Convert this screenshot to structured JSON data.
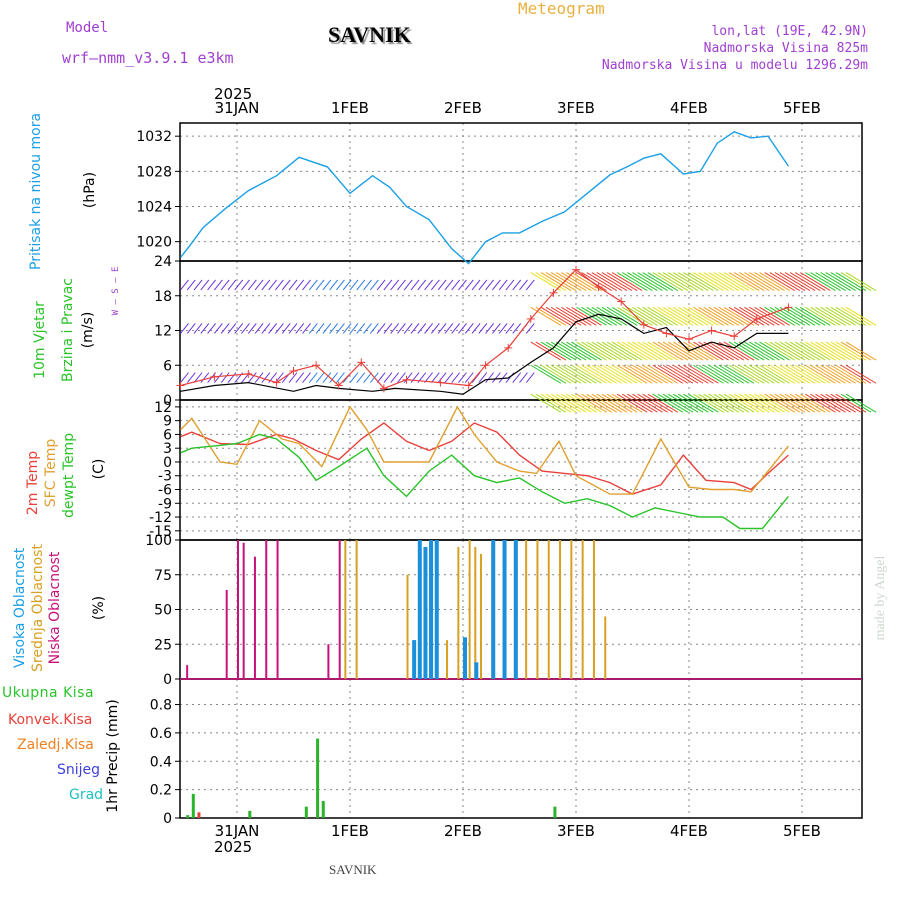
{
  "header": {
    "model_label": "Model",
    "model_name": "wrf—nmm_v3.9.1 e3km",
    "title": "SAVNIK",
    "meteogram_label": "Meteogram",
    "lonlat": "lon,lat (19E, 42.9N)",
    "altitude": "Nadmorska Visina 825m",
    "model_altitude": "Nadmorska Visina u modelu 1296.29m",
    "footer_station": "SAVNIK",
    "watermark": "made by Angel"
  },
  "colors": {
    "pressure": "#1aa0e6",
    "temp2m": "#e8403a",
    "sfc": "#e0a030",
    "dewpt": "#2ac42a",
    "high_cloud": "#1a90dc",
    "mid_cloud": "#d8a020",
    "low_cloud": "#c8107a",
    "total_precip": "#2ab42a",
    "conv_precip": "#e0403a",
    "frz_precip": "#f08020",
    "snow": "#4040e0",
    "graupel": "#20c0c0",
    "title_purple": "#a040d0",
    "meteogram_orange": "#e8b040"
  },
  "axes_labels": {
    "top_year": "2025",
    "top_dates": [
      "31JAN",
      "1FEB",
      "2FEB",
      "3FEB",
      "4FEB",
      "5FEB"
    ],
    "bottom_dates": [
      "31JAN",
      "1FEB",
      "2FEB",
      "3FEB",
      "4FEB",
      "5FEB"
    ],
    "bottom_year": "2025"
  },
  "panel_labels": {
    "pressure_name": "Pritisak na nivou mora",
    "pressure_unit": "(hPa)",
    "wind_name1": "10m Vjetar",
    "wind_name2": "Brzina i Pravac",
    "wind_unit": "(m/s)",
    "wind_legend": "W — S — E",
    "temp_name1": "2m Temp",
    "temp_name2": "SFC Temp",
    "temp_name3": "dewpt Temp",
    "temp_unit": "(C)",
    "cloud_name1": "Visoka Oblacnost",
    "cloud_name2": "Srednja Oblacnost",
    "cloud_name3": "Niska Oblacnost",
    "cloud_unit": "(%)",
    "precip_total": "Ukupna Kisa",
    "precip_conv": "Konvek.Kisa",
    "precip_frz": "Zaledj.Kisa",
    "precip_snow": "Snijeg",
    "precip_grad": "Grad",
    "precip_unit": "1hr Precip (mm)"
  },
  "chart_data": [
    {
      "type": "line",
      "name": "pressure",
      "title": "Pritisak na nivou mora",
      "ylabel": "(hPa)",
      "ylim": [
        1017.8,
        1033.5
      ],
      "yticks": [
        1020,
        1024,
        1028,
        1032
      ],
      "x_days": [
        0,
        0.08,
        0.2,
        0.4,
        0.6,
        0.85,
        1.05,
        1.3,
        1.5,
        1.7,
        1.85,
        2.0,
        2.2,
        2.4,
        2.55,
        2.7,
        2.85,
        3.0,
        3.2,
        3.4,
        3.6,
        3.8,
        3.95,
        4.1,
        4.25,
        4.45,
        4.6,
        4.75,
        4.9,
        5.05,
        5.2,
        5.38
      ],
      "values": [
        1018.2,
        1019.5,
        1021.6,
        1023.8,
        1025.8,
        1027.5,
        1029.6,
        1028.5,
        1025.5,
        1027.5,
        1026.2,
        1024.0,
        1022.5,
        1019.2,
        1017.5,
        1020.0,
        1021.0,
        1021.0,
        1022.3,
        1023.4,
        1025.5,
        1027.6,
        1028.5,
        1029.5,
        1030.0,
        1027.7,
        1028.0,
        1031.2,
        1032.5,
        1031.8,
        1032.0,
        1028.6
      ]
    },
    {
      "type": "line",
      "name": "wind_speed",
      "title": "10m Vjetar Brzina i Pravac",
      "ylabel": "(m/s)",
      "ylim": [
        0,
        24
      ],
      "yticks": [
        0,
        6,
        12,
        18,
        24
      ],
      "series": [
        {
          "name": "speed",
          "x_days": [
            0,
            0.3,
            0.6,
            1.0,
            1.2,
            1.4,
            1.7,
            1.9,
            2.3,
            2.5,
            2.7,
            2.9,
            3.1,
            3.3,
            3.5,
            3.7,
            3.9,
            4.1,
            4.3,
            4.5,
            4.7,
            4.9,
            5.1,
            5.38
          ],
          "values": [
            1.5,
            2.5,
            3.0,
            1.5,
            2.5,
            2.0,
            1.5,
            2.0,
            1.5,
            1.0,
            3.5,
            3.8,
            6.5,
            9.0,
            13.5,
            14.8,
            14.0,
            11.5,
            12.5,
            8.5,
            10.0,
            9.0,
            11.5,
            11.5
          ]
        },
        {
          "name": "gust",
          "x_days": [
            0,
            0.3,
            0.6,
            0.85,
            1.0,
            1.2,
            1.4,
            1.6,
            1.8,
            2.0,
            2.3,
            2.55,
            2.7,
            2.9,
            3.1,
            3.3,
            3.5,
            3.7,
            3.9,
            4.1,
            4.3,
            4.5,
            4.7,
            4.9,
            5.1,
            5.38
          ],
          "values": [
            2.5,
            4.0,
            4.5,
            3.0,
            5.0,
            6.0,
            2.5,
            6.5,
            2.0,
            3.5,
            3.0,
            2.5,
            6.0,
            9.0,
            14.0,
            18.5,
            22.5,
            19.5,
            17.0,
            13.0,
            11.5,
            10.5,
            12.0,
            11.0,
            14.0,
            16.0
          ]
        }
      ]
    },
    {
      "type": "line",
      "name": "temperature",
      "title": "2m Temp / SFC Temp / dewpt Temp",
      "ylabel": "(C)",
      "ylim": [
        -17,
        13.5
      ],
      "yticks": [
        -15,
        -12,
        -9,
        -6,
        -3,
        0,
        3,
        6,
        9,
        12
      ],
      "series": [
        {
          "name": "2m Temp",
          "x_days": [
            0,
            0.1,
            0.35,
            0.6,
            0.85,
            1.0,
            1.2,
            1.4,
            1.6,
            1.8,
            2.0,
            2.2,
            2.4,
            2.6,
            2.8,
            3.0,
            3.2,
            3.4,
            3.6,
            3.8,
            4.0,
            4.25,
            4.45,
            4.65,
            4.9,
            5.05,
            5.2,
            5.38
          ],
          "values": [
            5.5,
            6.5,
            4.0,
            3.8,
            6.0,
            5.0,
            2.5,
            0.5,
            5.0,
            8.5,
            4.5,
            2.5,
            4.5,
            8.5,
            6.5,
            1.5,
            -2.0,
            -2.5,
            -3.0,
            -4.5,
            -7.0,
            -5.0,
            1.5,
            -4.0,
            -4.5,
            -6.0,
            -2.5,
            1.5
          ]
        },
        {
          "name": "SFC Temp",
          "x_days": [
            0,
            0.1,
            0.35,
            0.5,
            0.7,
            0.9,
            1.05,
            1.25,
            1.5,
            1.65,
            1.8,
            2.0,
            2.2,
            2.45,
            2.6,
            2.8,
            3.0,
            3.15,
            3.35,
            3.5,
            3.8,
            4.0,
            4.25,
            4.5,
            4.7,
            4.9,
            5.05,
            5.2,
            5.38
          ],
          "values": [
            7.0,
            9.5,
            0.0,
            -0.5,
            9.0,
            5.0,
            4.0,
            -1.0,
            12.0,
            7.0,
            0.0,
            0.0,
            0.0,
            12.0,
            6.0,
            0.0,
            -2.0,
            -2.5,
            4.5,
            -3.0,
            -7.0,
            -7.0,
            5.0,
            -5.5,
            -6.0,
            -6.0,
            -6.5,
            -2.0,
            3.5
          ]
        },
        {
          "name": "dewpt Temp",
          "x_days": [
            0,
            0.1,
            0.3,
            0.5,
            0.7,
            0.85,
            1.05,
            1.2,
            1.4,
            1.65,
            1.8,
            2.0,
            2.2,
            2.4,
            2.6,
            2.8,
            3.0,
            3.2,
            3.4,
            3.6,
            3.8,
            4.0,
            4.2,
            4.4,
            4.6,
            4.8,
            4.95,
            5.15,
            5.38
          ],
          "values": [
            2.0,
            3.0,
            3.5,
            4.0,
            6.0,
            5.0,
            1.0,
            -4.0,
            -1.0,
            3.0,
            -3.0,
            -7.5,
            -2.0,
            1.5,
            -3.0,
            -4.5,
            -3.5,
            -6.5,
            -9.0,
            -8.0,
            -9.5,
            -12.0,
            -10.0,
            -11.0,
            -12.0,
            -12.0,
            -14.5,
            -14.5,
            -7.5
          ]
        }
      ]
    },
    {
      "type": "bar",
      "name": "cloud_cover",
      "title": "Visoka / Srednja / Niska Oblacnost",
      "ylabel": "(%)",
      "ylim": [
        0,
        100
      ],
      "yticks": [
        0,
        25,
        50,
        75,
        100
      ],
      "series": [
        {
          "name": "Niska Oblacnost",
          "x_days": [
            0.05,
            0.4,
            0.5,
            0.55,
            0.65,
            0.75,
            0.85,
            1.3,
            1.4
          ],
          "values": [
            10,
            64,
            100,
            98,
            88,
            100,
            100,
            25,
            100
          ]
        },
        {
          "name": "Srednja Oblacnost",
          "x_days": [
            1.45,
            1.55,
            2.0,
            2.2,
            2.35,
            2.45,
            2.55,
            2.6,
            2.65,
            2.75,
            2.85,
            2.95,
            3.05,
            3.15,
            3.25,
            3.35,
            3.45,
            3.55,
            3.65,
            3.75
          ],
          "values": [
            100,
            100,
            75,
            100,
            28,
            95,
            100,
            95,
            90,
            100,
            100,
            100,
            100,
            100,
            100,
            100,
            100,
            100,
            100,
            45
          ]
        },
        {
          "name": "Visoka Oblacnost",
          "x_days": [
            2.05,
            2.1,
            2.15,
            2.2,
            2.25,
            2.5,
            2.6,
            2.75,
            2.85,
            2.95
          ],
          "values": [
            28,
            100,
            95,
            100,
            100,
            30,
            12,
            100,
            100,
            100
          ]
        }
      ]
    },
    {
      "type": "bar",
      "name": "precipitation",
      "title": "1hr Precip (mm)",
      "ylabel": "1hr Precip (mm)",
      "ylim": [
        0,
        0.98
      ],
      "yticks": [
        0,
        0.2,
        0.4,
        0.6,
        0.8
      ],
      "series": [
        {
          "name": "Ukupna Kisa",
          "x_days": [
            0.05,
            0.1,
            0.6,
            1.1,
            1.2,
            1.25,
            3.3
          ],
          "values": [
            0.02,
            0.17,
            0.05,
            0.08,
            0.56,
            0.12,
            0.08
          ]
        },
        {
          "name": "Konvek.Kisa",
          "x_days": [
            0.15
          ],
          "values": [
            0.04
          ]
        }
      ]
    }
  ]
}
